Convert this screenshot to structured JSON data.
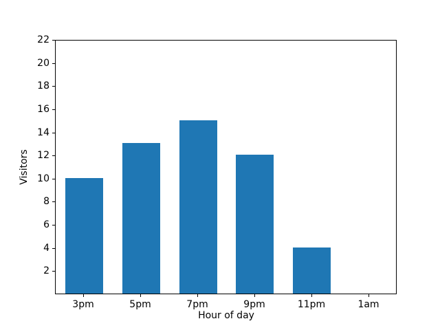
{
  "chart_data": {
    "type": "bar",
    "categories": [
      "3pm",
      "5pm",
      "7pm",
      "9pm",
      "11pm",
      "1am"
    ],
    "values": [
      10,
      13,
      15,
      12,
      4,
      0
    ],
    "xlabel": "Hour of day",
    "ylabel": "Visitors",
    "ylim": [
      0,
      22
    ],
    "yticks": [
      2,
      4,
      6,
      8,
      10,
      12,
      14,
      16,
      18,
      20,
      22
    ],
    "bar_color": "#1f77b4",
    "axis_color": "#000000",
    "background_color": "#ffffff",
    "grid": false,
    "legend": false
  }
}
